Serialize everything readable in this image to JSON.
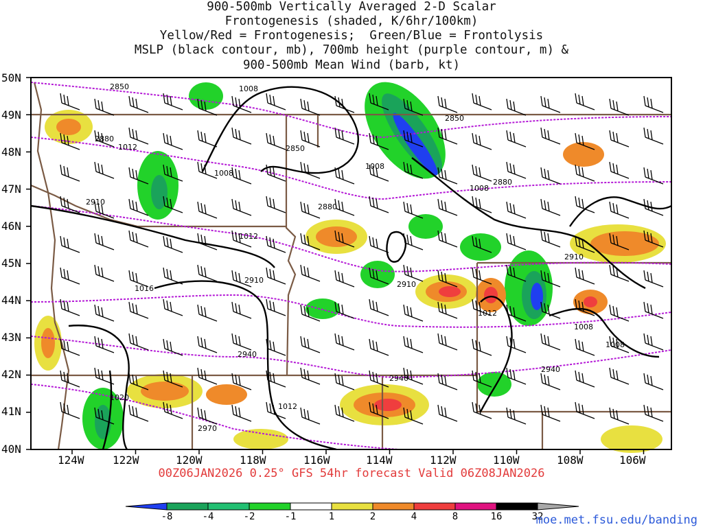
{
  "title_lines": [
    "900-500mb Vertically Averaged 2-D Scalar",
    "Frontogenesis (shaded, K/6hr/100km)",
    "Yellow/Red = Frontogenesis;  Green/Blue = Frontolysis",
    "MSLP (black contour, mb), 700mb height (purple contour, m) &",
    "900-500mb Mean Wind (barb, kt)"
  ],
  "lat_labels": [
    "50N",
    "49N",
    "48N",
    "47N",
    "46N",
    "45N",
    "44N",
    "43N",
    "42N",
    "41N",
    "40N"
  ],
  "lon_labels": [
    "124W",
    "122W",
    "120W",
    "118W",
    "116W",
    "114W",
    "112W",
    "110W",
    "108W",
    "106W"
  ],
  "caption": "00Z06JAN2026 0.25° GFS 54hr forecast Valid 06Z08JAN2026",
  "credit": "moe.met.fsu.edu/banding",
  "colorbar": {
    "labels": [
      "-8",
      "-4",
      "-2",
      "-1",
      "1",
      "2",
      "4",
      "8",
      "16",
      "32"
    ],
    "colors": [
      "#1f3ff0",
      "#1aa35a",
      "#22c072",
      "#22d22a",
      "#ffffff",
      "#e8e040",
      "#ef8a2a",
      "#ef3e3e",
      "#e0137f",
      "#000000",
      "#a8a8a8"
    ]
  },
  "contour_labels": {
    "mslp": [
      "1008",
      "1012",
      "1008",
      "1008",
      "1008",
      "1012",
      "1016",
      "1012",
      "1012",
      "1008",
      "1020",
      "1008"
    ],
    "height": [
      "2850",
      "2850",
      "2880",
      "2850",
      "2880",
      "2880",
      "2910",
      "2910",
      "2910",
      "2910",
      "2940",
      "2940",
      "2940",
      "2970"
    ]
  },
  "colors": {
    "mslp": "#000000",
    "height": "#b418d6",
    "borders": "#7a5a44",
    "caption": "#e23a3a",
    "credit": "#2b59d9"
  }
}
